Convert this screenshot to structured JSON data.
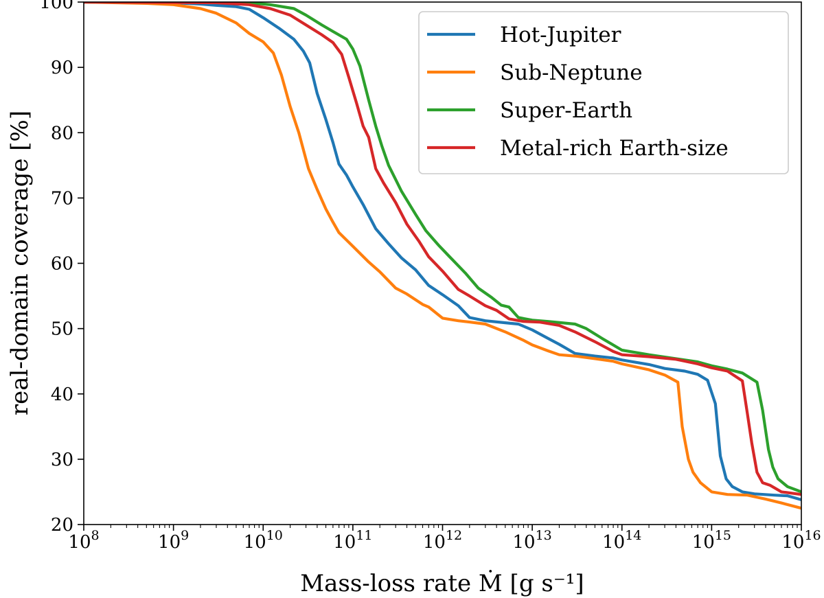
{
  "chart_data": {
    "type": "line",
    "title": "",
    "xlabel": "Mass-loss rate Ṁ [g s⁻¹]",
    "ylabel": "real-domain coverage [%]",
    "x_scale": "log",
    "xlim": [
      100000000.0,
      1e+16
    ],
    "ylim": [
      20,
      100
    ],
    "x_ticks": [
      {
        "base": "10",
        "exp": "8"
      },
      {
        "base": "10",
        "exp": "9"
      },
      {
        "base": "10",
        "exp": "10"
      },
      {
        "base": "10",
        "exp": "11"
      },
      {
        "base": "10",
        "exp": "12"
      },
      {
        "base": "10",
        "exp": "13"
      },
      {
        "base": "10",
        "exp": "14"
      },
      {
        "base": "10",
        "exp": "15"
      },
      {
        "base": "10",
        "exp": "16"
      }
    ],
    "y_ticks": [
      "20",
      "30",
      "40",
      "50",
      "60",
      "70",
      "80",
      "90",
      "100"
    ],
    "grid": false,
    "legend_position": "top-right",
    "series": [
      {
        "name": "Hot-Jupiter",
        "color": "#1f77b4",
        "points": [
          [
            100000000.0,
            100
          ],
          [
            1000000000.0,
            99.9
          ],
          [
            2000000000.0,
            99.7
          ],
          [
            3000000000.0,
            99.5
          ],
          [
            5000000000.0,
            99.3
          ],
          [
            7000000000.0,
            98.9
          ],
          [
            10000000000.0,
            97.6
          ],
          [
            15000000000.0,
            96.0
          ],
          [
            22000000000.0,
            94.3
          ],
          [
            28000000000.0,
            92.5
          ],
          [
            33000000000.0,
            90.7
          ],
          [
            40000000000.0,
            86.0
          ],
          [
            50000000000.0,
            82.0
          ],
          [
            60000000000.0,
            78.5
          ],
          [
            70000000000.0,
            75.2
          ],
          [
            85000000000.0,
            73.5
          ],
          [
            100000000000.0,
            71.7
          ],
          [
            130000000000.0,
            69.0
          ],
          [
            180000000000.0,
            65.3
          ],
          [
            250000000000.0,
            63.0
          ],
          [
            350000000000.0,
            60.8
          ],
          [
            500000000000.0,
            59.0
          ],
          [
            700000000000.0,
            56.6
          ],
          [
            1000000000000.0,
            55.2
          ],
          [
            1500000000000.0,
            53.5
          ],
          [
            2000000000000.0,
            51.7
          ],
          [
            3000000000000.0,
            51.2
          ],
          [
            5000000000000.0,
            50.9
          ],
          [
            7000000000000.0,
            50.7
          ],
          [
            10000000000000.0,
            49.8
          ],
          [
            15000000000000.0,
            48.5
          ],
          [
            20000000000000.0,
            47.6
          ],
          [
            30000000000000.0,
            46.2
          ],
          [
            50000000000000.0,
            45.8
          ],
          [
            80000000000000.0,
            45.5
          ],
          [
            100000000000000.0,
            45.2
          ],
          [
            200000000000000.0,
            44.5
          ],
          [
            300000000000000.0,
            43.9
          ],
          [
            500000000000000.0,
            43.5
          ],
          [
            700000000000000.0,
            43.0
          ],
          [
            900000000000000.0,
            42.1
          ],
          [
            1100000000000000.0,
            38.5
          ],
          [
            1250000000000000.0,
            30.5
          ],
          [
            1450000000000000.0,
            27.0
          ],
          [
            1700000000000000.0,
            25.8
          ],
          [
            2200000000000000.0,
            25.0
          ],
          [
            3000000000000000.0,
            24.7
          ],
          [
            5000000000000000.0,
            24.5
          ],
          [
            7000000000000000.0,
            24.4
          ],
          [
            1e+16,
            23.8
          ]
        ]
      },
      {
        "name": "Sub-Neptune",
        "color": "#ff7f0e",
        "points": [
          [
            100000000.0,
            100
          ],
          [
            500000000.0,
            99.8
          ],
          [
            1000000000.0,
            99.6
          ],
          [
            2000000000.0,
            99.0
          ],
          [
            3000000000.0,
            98.3
          ],
          [
            5000000000.0,
            96.8
          ],
          [
            7000000000.0,
            95.2
          ],
          [
            10000000000.0,
            93.9
          ],
          [
            13000000000.0,
            92.2
          ],
          [
            16000000000.0,
            88.8
          ],
          [
            20000000000.0,
            84.0
          ],
          [
            25000000000.0,
            80.0
          ],
          [
            32000000000.0,
            74.5
          ],
          [
            40000000000.0,
            71.3
          ],
          [
            50000000000.0,
            68.3
          ],
          [
            60000000000.0,
            66.3
          ],
          [
            70000000000.0,
            64.7
          ],
          [
            100000000000.0,
            62.6
          ],
          [
            150000000000.0,
            60.2
          ],
          [
            200000000000.0,
            58.7
          ],
          [
            300000000000.0,
            56.2
          ],
          [
            400000000000.0,
            55.3
          ],
          [
            600000000000.0,
            53.7
          ],
          [
            700000000000.0,
            53.3
          ],
          [
            1000000000000.0,
            51.6
          ],
          [
            1500000000000.0,
            51.2
          ],
          [
            2000000000000.0,
            51.0
          ],
          [
            3000000000000.0,
            50.7
          ],
          [
            5000000000000.0,
            49.5
          ],
          [
            8000000000000.0,
            48.2
          ],
          [
            10000000000000.0,
            47.5
          ],
          [
            15000000000000.0,
            46.6
          ],
          [
            20000000000000.0,
            46.0
          ],
          [
            30000000000000.0,
            45.8
          ],
          [
            50000000000000.0,
            45.4
          ],
          [
            80000000000000.0,
            45.0
          ],
          [
            100000000000000.0,
            44.6
          ],
          [
            200000000000000.0,
            43.7
          ],
          [
            300000000000000.0,
            42.9
          ],
          [
            420000000000000.0,
            41.8
          ],
          [
            470000000000000.0,
            35.0
          ],
          [
            550000000000000.0,
            30.0
          ],
          [
            620000000000000.0,
            28.0
          ],
          [
            750000000000000.0,
            26.4
          ],
          [
            1000000000000000.0,
            25.0
          ],
          [
            1500000000000000.0,
            24.6
          ],
          [
            2500000000000000.0,
            24.5
          ],
          [
            4000000000000000.0,
            23.9
          ],
          [
            6000000000000000.0,
            23.3
          ],
          [
            1e+16,
            22.5
          ]
        ]
      },
      {
        "name": "Super-Earth",
        "color": "#2ca02c",
        "points": [
          [
            100000000.0,
            100
          ],
          [
            3000000000.0,
            100
          ],
          [
            7000000000.0,
            99.9
          ],
          [
            12000000000.0,
            99.6
          ],
          [
            22000000000.0,
            99.0
          ],
          [
            30000000000.0,
            98.0
          ],
          [
            45000000000.0,
            96.5
          ],
          [
            60000000000.0,
            95.5
          ],
          [
            85000000000.0,
            94.3
          ],
          [
            100000000000.0,
            92.8
          ],
          [
            120000000000.0,
            90.2
          ],
          [
            150000000000.0,
            85.0
          ],
          [
            180000000000.0,
            81.0
          ],
          [
            210000000000.0,
            78.0
          ],
          [
            250000000000.0,
            75.0
          ],
          [
            350000000000.0,
            71.0
          ],
          [
            500000000000.0,
            67.5
          ],
          [
            650000000000.0,
            65.0
          ],
          [
            900000000000.0,
            62.8
          ],
          [
            1200000000000.0,
            61.0
          ],
          [
            1800000000000.0,
            58.5
          ],
          [
            2500000000000.0,
            56.2
          ],
          [
            3500000000000.0,
            54.8
          ],
          [
            4500000000000.0,
            53.6
          ],
          [
            5500000000000.0,
            53.3
          ],
          [
            7000000000000.0,
            51.7
          ],
          [
            10000000000000.0,
            51.3
          ],
          [
            15000000000000.0,
            51.1
          ],
          [
            30000000000000.0,
            50.7
          ],
          [
            40000000000000.0,
            50.0
          ],
          [
            60000000000000.0,
            48.5
          ],
          [
            100000000000000.0,
            46.7
          ],
          [
            200000000000000.0,
            46.0
          ],
          [
            400000000000000.0,
            45.4
          ],
          [
            700000000000000.0,
            44.9
          ],
          [
            1000000000000000.0,
            44.3
          ],
          [
            1500000000000000.0,
            43.8
          ],
          [
            2200000000000000.0,
            43.2
          ],
          [
            3200000000000000.0,
            41.8
          ],
          [
            3700000000000000.0,
            37.5
          ],
          [
            4300000000000000.0,
            31.5
          ],
          [
            4800000000000000.0,
            28.8
          ],
          [
            5500000000000000.0,
            27.0
          ],
          [
            7000000000000000.0,
            25.8
          ],
          [
            1e+16,
            25.0
          ]
        ]
      },
      {
        "name": "Metal-rich Earth-size",
        "color": "#d62728",
        "points": [
          [
            100000000.0,
            100
          ],
          [
            3000000000.0,
            99.9
          ],
          [
            7000000000.0,
            99.6
          ],
          [
            12000000000.0,
            99.0
          ],
          [
            20000000000.0,
            98.0
          ],
          [
            30000000000.0,
            96.5
          ],
          [
            45000000000.0,
            95.0
          ],
          [
            60000000000.0,
            93.8
          ],
          [
            75000000000.0,
            92.0
          ],
          [
            90000000000.0,
            88.5
          ],
          [
            110000000000.0,
            84.5
          ],
          [
            130000000000.0,
            81.0
          ],
          [
            150000000000.0,
            79.3
          ],
          [
            180000000000.0,
            74.5
          ],
          [
            220000000000.0,
            72.3
          ],
          [
            300000000000.0,
            69.3
          ],
          [
            400000000000.0,
            66.0
          ],
          [
            550000000000.0,
            63.3
          ],
          [
            700000000000.0,
            61.0
          ],
          [
            1000000000000.0,
            58.8
          ],
          [
            1500000000000.0,
            56.0
          ],
          [
            2000000000000.0,
            55.0
          ],
          [
            3000000000000.0,
            53.5
          ],
          [
            4000000000000.0,
            52.8
          ],
          [
            5500000000000.0,
            51.5
          ],
          [
            8000000000000.0,
            51.1
          ],
          [
            12000000000000.0,
            51.0
          ],
          [
            20000000000000.0,
            50.5
          ],
          [
            30000000000000.0,
            49.5
          ],
          [
            50000000000000.0,
            48.0
          ],
          [
            80000000000000.0,
            46.5
          ],
          [
            100000000000000.0,
            46.0
          ],
          [
            200000000000000.0,
            45.7
          ],
          [
            400000000000000.0,
            45.3
          ],
          [
            700000000000000.0,
            44.6
          ],
          [
            1000000000000000.0,
            44.0
          ],
          [
            1500000000000000.0,
            43.5
          ],
          [
            2200000000000000.0,
            42.0
          ],
          [
            2500000000000000.0,
            37.0
          ],
          [
            2800000000000000.0,
            32.5
          ],
          [
            3200000000000000.0,
            28.0
          ],
          [
            3700000000000000.0,
            26.4
          ],
          [
            4500000000000000.0,
            26.0
          ],
          [
            6000000000000000.0,
            25.0
          ],
          [
            1e+16,
            24.6
          ]
        ]
      }
    ]
  }
}
